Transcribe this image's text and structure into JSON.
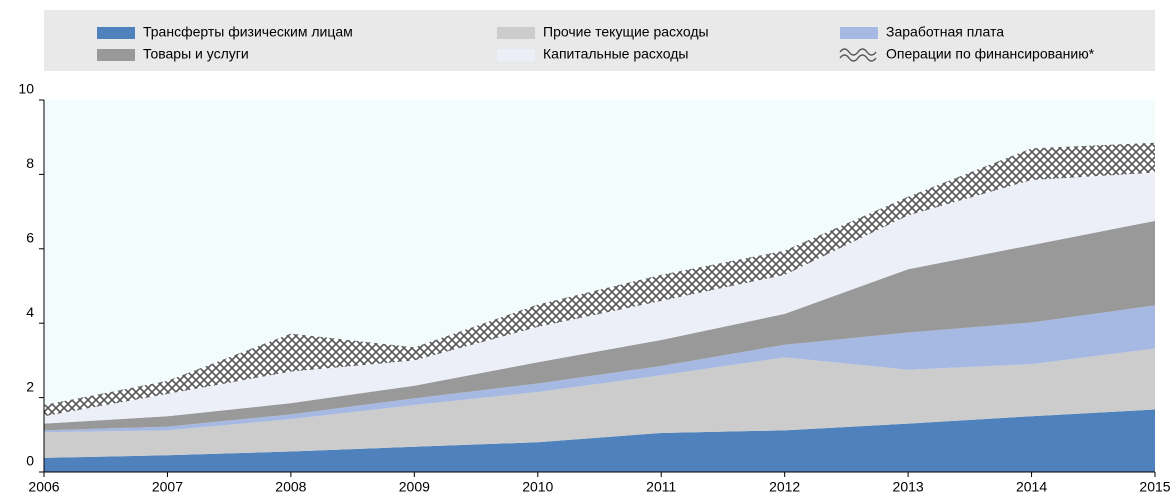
{
  "chart_data": {
    "type": "area",
    "stacked": true,
    "categories": [
      "2006",
      "2007",
      "2008",
      "2009",
      "2010",
      "2011",
      "2012",
      "2013",
      "2014",
      "2015"
    ],
    "series": [
      {
        "name": "Трансферты физическим лицам",
        "color": "#4f81bd",
        "values": [
          0.38,
          0.45,
          0.55,
          0.68,
          0.8,
          1.05,
          1.12,
          1.3,
          1.5,
          1.68
        ]
      },
      {
        "name": "Прочие текущие расходы",
        "color": "#cccccc",
        "values": [
          0.69,
          0.67,
          0.87,
          1.12,
          1.35,
          1.55,
          1.96,
          1.45,
          1.4,
          1.64
        ]
      },
      {
        "name": "Заработная плата",
        "color": "#a6b9e2",
        "values": [
          0.05,
          0.1,
          0.13,
          0.18,
          0.23,
          0.25,
          0.34,
          1.0,
          1.12,
          1.16
        ]
      },
      {
        "name": "Товары и услуги",
        "color": "#999999",
        "values": [
          0.18,
          0.28,
          0.3,
          0.34,
          0.57,
          0.7,
          0.83,
          1.7,
          2.08,
          2.27
        ]
      },
      {
        "name": "Капитальные расходы",
        "color": "#eceef8",
        "values": [
          0.2,
          0.6,
          0.85,
          0.68,
          0.95,
          1.05,
          1.05,
          1.45,
          1.75,
          1.3
        ]
      },
      {
        "name": "Операции по финансированию*",
        "color": "#555555",
        "hatch": true,
        "values": [
          0.3,
          0.35,
          1.02,
          0.35,
          0.6,
          0.7,
          0.65,
          0.5,
          0.85,
          0.8
        ]
      }
    ],
    "ylim": [
      0,
      10
    ],
    "yticks": [
      0,
      2,
      4,
      6,
      8,
      10
    ],
    "grid": false
  }
}
